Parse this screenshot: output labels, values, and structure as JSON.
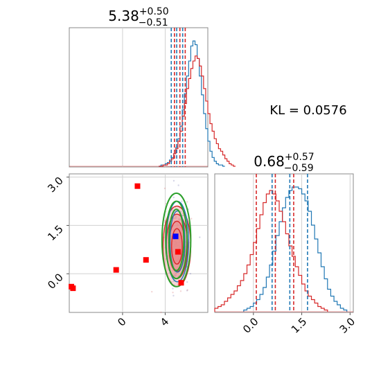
{
  "chart_data": [
    {
      "panel": "x-marginal",
      "type": "histogram",
      "title": {
        "median": "5.38",
        "plus": "+0.50",
        "minus": "−0.51"
      },
      "xlim": [
        -5.0,
        8.0
      ],
      "grid": true,
      "series": [
        {
          "color": "#1f77b4",
          "step": 0.2,
          "start": 3.4,
          "counts": [
            0,
            1,
            1,
            2,
            3,
            5,
            7,
            10,
            15,
            22,
            32,
            45,
            58,
            72,
            84,
            96,
            100,
            97,
            86,
            72,
            57,
            42,
            30,
            20,
            12,
            7,
            4,
            2,
            1,
            1,
            0
          ],
          "quantile_lines": [
            4.57,
            5.08,
            5.64
          ]
        },
        {
          "color": "#d62728",
          "step": 0.2,
          "start": 3.4,
          "counts": [
            0,
            0,
            1,
            1,
            2,
            4,
            6,
            10,
            14,
            20,
            28,
            40,
            50,
            62,
            70,
            78,
            84,
            88,
            86,
            80,
            72,
            62,
            52,
            42,
            34,
            28,
            22,
            18,
            14,
            12,
            9,
            6,
            4,
            2,
            1,
            0
          ],
          "quantile_lines": [
            4.87,
            5.38,
            5.88
          ]
        }
      ]
    },
    {
      "panel": "y-marginal",
      "type": "histogram",
      "title": {
        "median": "0.68",
        "plus": "+0.57",
        "minus": "−0.59"
      },
      "xlim": [
        -1.2,
        3.1
      ],
      "xticks": [
        "0.0",
        "1.5",
        "3.0"
      ],
      "grid": true,
      "series": [
        {
          "color": "#1f77b4",
          "step": 0.1,
          "start": -0.3,
          "counts": [
            1,
            2,
            3,
            5,
            7,
            10,
            14,
            20,
            27,
            35,
            44,
            52,
            60,
            66,
            70,
            72,
            72,
            71,
            68,
            64,
            58,
            50,
            42,
            34,
            26,
            19,
            13,
            9,
            6,
            4,
            2,
            1
          ],
          "quantile_lines": [
            0.58,
            1.13,
            1.68
          ]
        },
        {
          "color": "#d62728",
          "step": 0.1,
          "start": -1.2,
          "counts": [
            2,
            3,
            4,
            6,
            8,
            10,
            12,
            15,
            18,
            22,
            27,
            33,
            40,
            48,
            56,
            63,
            68,
            70,
            68,
            64,
            58,
            52,
            45,
            38,
            32,
            26,
            21,
            16,
            12,
            9,
            7,
            5,
            3,
            2,
            1
          ],
          "quantile_lines": [
            0.09,
            0.68,
            1.25
          ]
        }
      ]
    },
    {
      "panel": "joint",
      "type": "scatter",
      "xlim": [
        -5.0,
        8.0
      ],
      "ylim": [
        -1.2,
        3.1
      ],
      "xticks": [
        "0",
        "4"
      ],
      "yticks": [
        "0.0",
        "1.5",
        "3.0"
      ],
      "grid": true,
      "contours": [
        {
          "color": "#d62728",
          "fill": "#e88a8a",
          "cx": 5.1,
          "cy": 0.85,
          "rx": [
            1.3,
            1.0,
            0.75,
            0.5
          ],
          "ry": [
            1.25,
            1.0,
            0.78,
            0.55
          ]
        },
        {
          "color": "#1f77b4",
          "fill": "none",
          "cx": 5.15,
          "cy": 1.0,
          "rx": [
            1.05,
            0.7
          ],
          "ry": [
            1.25,
            0.95
          ]
        },
        {
          "color": "#2ca02c",
          "fill": "none",
          "cx": 5.05,
          "cy": 1.05,
          "rx": [
            1.35,
            1.0,
            0.7
          ],
          "ry": [
            1.45,
            1.2,
            0.95
          ]
        }
      ],
      "markers": [
        {
          "color": "#0000ff",
          "x": 4.98,
          "y": 1.16
        },
        {
          "color": "#ff0000",
          "x": 1.4,
          "y": 2.72
        },
        {
          "color": "#ff0000",
          "x": 2.2,
          "y": 0.43
        },
        {
          "color": "#ff0000",
          "x": -0.6,
          "y": 0.12
        },
        {
          "color": "#ff0000",
          "x": -4.8,
          "y": -0.4
        },
        {
          "color": "#ff0000",
          "x": -4.65,
          "y": -0.45
        },
        {
          "color": "#ff0000",
          "x": 5.2,
          "y": 0.68
        },
        {
          "color": "#ff0000",
          "x": 5.5,
          "y": -0.28
        }
      ]
    }
  ],
  "annotation": {
    "kl_label": "KL = 0.0576"
  }
}
